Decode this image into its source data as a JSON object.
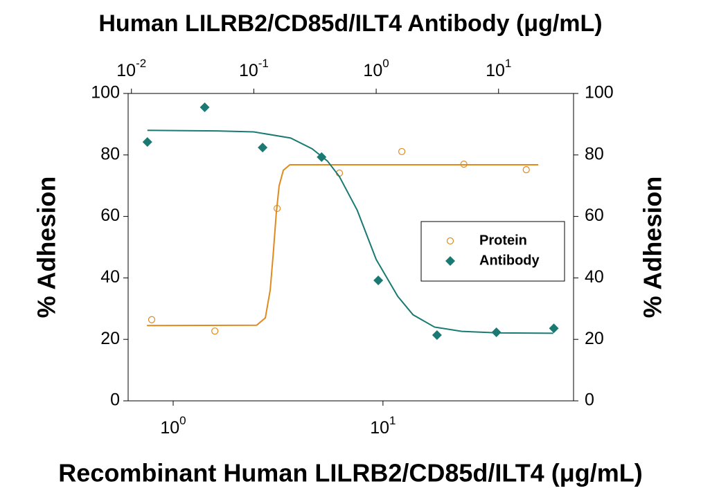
{
  "chart_data": {
    "type": "scatter",
    "title": "Human LILRB2/CD85d/ILT4 Antibody (μg/mL)",
    "xlabel": "Recombinant Human LILRB2/CD85d/ILT4 (μg/mL)",
    "ylabel": "% Adhesion",
    "y2label": "% Adhesion",
    "xscale": "log",
    "x2scale": "log",
    "xlim": [
      0.61,
      81
    ],
    "xticks": [
      {
        "value": 1,
        "label": "10",
        "sup": "0"
      },
      {
        "value": 10,
        "label": "10",
        "sup": "1"
      }
    ],
    "x2lim": [
      0.0094,
      41
    ],
    "x2ticks": [
      {
        "value": 0.01,
        "label": "10",
        "sup": "-2"
      },
      {
        "value": 0.1,
        "label": "10",
        "sup": "-1"
      },
      {
        "value": 1,
        "label": "10",
        "sup": "0"
      },
      {
        "value": 10,
        "label": "10",
        "sup": "1"
      }
    ],
    "ylim": [
      0,
      100
    ],
    "yticks": [
      0,
      20,
      40,
      60,
      80,
      100
    ],
    "y2lim": [
      0,
      100
    ],
    "y2ticks": [
      0,
      20,
      40,
      60,
      80,
      100
    ],
    "legend": "right",
    "series": [
      {
        "name": "Protein",
        "color": "#e08a1e",
        "marker": "circle",
        "xaxis": "x",
        "x": [
          0.79,
          1.58,
          3.13,
          6.2,
          12.3,
          24.3,
          48.2
        ],
        "values": [
          26.4,
          22.7,
          62.6,
          74.1,
          81.1,
          77.0,
          75.2
        ],
        "fit": {
          "x": [
            0.75,
            2.5,
            2.75,
            2.9,
            3.0,
            3.1,
            3.2,
            3.35,
            3.6,
            55
          ],
          "values": [
            24.5,
            24.6,
            27,
            36,
            48,
            61,
            70,
            75,
            76.8,
            76.8
          ]
        }
      },
      {
        "name": "Antibody",
        "color": "#1a7a73",
        "marker": "diamond",
        "xaxis": "x2",
        "x": [
          0.0135,
          0.0397,
          0.118,
          0.358,
          1.04,
          3.14,
          9.6,
          28.3
        ],
        "values": [
          84.2,
          95.5,
          82.4,
          79.3,
          39.2,
          21.4,
          22.3,
          23.6
        ],
        "fit": {
          "x": [
            0.0135,
            0.05,
            0.1,
            0.2,
            0.3,
            0.4,
            0.5,
            0.7,
            1,
            1.5,
            2,
            3,
            5,
            10,
            28
          ],
          "values": [
            88,
            87.8,
            87.5,
            85.5,
            82,
            78,
            73,
            62,
            46,
            34,
            28,
            24,
            22.6,
            22.1,
            22
          ]
        }
      }
    ]
  }
}
